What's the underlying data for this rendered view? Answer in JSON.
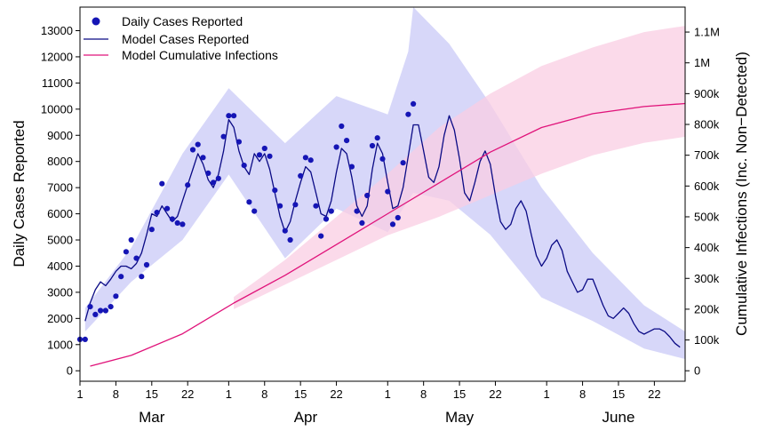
{
  "chart_data": {
    "type": "line",
    "title": "",
    "y_left_label": "Daily Cases Reported",
    "y_right_label": "Cumulative Infections (Inc. Non−Detected)",
    "x_tick_labels": [
      "1",
      "8",
      "15",
      "22",
      "1",
      "8",
      "15",
      "22",
      "1",
      "8",
      "15",
      "22",
      "1",
      "8",
      "15",
      "22"
    ],
    "x_tick_days": [
      0,
      7,
      14,
      21,
      29,
      36,
      43,
      50,
      60,
      67,
      74,
      81,
      91,
      98,
      105,
      112
    ],
    "month_labels": [
      {
        "label": "Mar",
        "day": 14
      },
      {
        "label": "Apr",
        "day": 44
      },
      {
        "label": "May",
        "day": 74
      },
      {
        "label": "June",
        "day": 105
      }
    ],
    "x_range_days": [
      0,
      118
    ],
    "x_origin": "Feb 1",
    "y_left_ticks": [
      0,
      1000,
      2000,
      3000,
      4000,
      5000,
      6000,
      7000,
      8000,
      9000,
      10000,
      11000,
      12000,
      13000
    ],
    "y_left_range": [
      -400,
      13900
    ],
    "y_right_ticks": [
      0,
      100000,
      200000,
      300000,
      400000,
      500000,
      600000,
      700000,
      800000,
      900000,
      1000000,
      1100000
    ],
    "y_right_tick_labels": [
      "0",
      "100k",
      "200k",
      "300k",
      "400k",
      "500k",
      "600k",
      "700k",
      "800k",
      "900k",
      "1M",
      "1.1M"
    ],
    "y_right_range": [
      -34000,
      1181000
    ],
    "legend": {
      "position": "top-left",
      "entries": [
        "Daily Cases Reported",
        "Model Cases Reported",
        "Model Cumulative Infections"
      ]
    },
    "colors": {
      "observed_points": "#1515b5",
      "model_cases_line": "#0a0a85",
      "model_cases_band": "#c9c9f7",
      "cumulative_line": "#e0137a",
      "cumulative_band": "#f9cde3"
    },
    "series": [
      {
        "name": "Daily Cases Reported",
        "kind": "points",
        "axis": "left",
        "points": [
          [
            0,
            1200
          ],
          [
            1,
            1200
          ],
          [
            2,
            2450
          ],
          [
            3,
            2150
          ],
          [
            4,
            2300
          ],
          [
            5,
            2300
          ],
          [
            6,
            2450
          ],
          [
            7,
            2850
          ],
          [
            8,
            3600
          ],
          [
            9,
            4550
          ],
          [
            10,
            5000
          ],
          [
            11,
            4300
          ],
          [
            12,
            3600
          ],
          [
            13,
            4050
          ],
          [
            14,
            5400
          ],
          [
            15,
            6050
          ],
          [
            16,
            7150
          ],
          [
            17,
            6200
          ],
          [
            18,
            5800
          ],
          [
            19,
            5650
          ],
          [
            20,
            5600
          ],
          [
            21,
            7100
          ],
          [
            22,
            8450
          ],
          [
            23,
            8650
          ],
          [
            24,
            8150
          ],
          [
            25,
            7550
          ],
          [
            26,
            7200
          ],
          [
            27,
            7350
          ],
          [
            28,
            8950
          ],
          [
            29,
            9750
          ],
          [
            30,
            9750
          ],
          [
            31,
            8750
          ],
          [
            32,
            7850
          ],
          [
            33,
            6450
          ],
          [
            34,
            6100
          ],
          [
            35,
            8250
          ],
          [
            36,
            8500
          ],
          [
            37,
            8200
          ],
          [
            38,
            6900
          ],
          [
            39,
            6300
          ],
          [
            40,
            5350
          ],
          [
            41,
            5000
          ],
          [
            42,
            6350
          ],
          [
            43,
            7450
          ],
          [
            44,
            8150
          ],
          [
            45,
            8050
          ],
          [
            46,
            6300
          ],
          [
            47,
            5150
          ],
          [
            48,
            5800
          ],
          [
            49,
            6100
          ],
          [
            50,
            8550
          ],
          [
            51,
            9350
          ],
          [
            52,
            8800
          ],
          [
            53,
            7800
          ],
          [
            54,
            6100
          ],
          [
            55,
            5650
          ],
          [
            56,
            6700
          ],
          [
            57,
            8600
          ],
          [
            58,
            8900
          ],
          [
            59,
            8100
          ],
          [
            60,
            6850
          ],
          [
            61,
            5600
          ],
          [
            62,
            5850
          ],
          [
            63,
            7950
          ],
          [
            64,
            9800
          ],
          [
            65,
            10200
          ]
        ]
      },
      {
        "name": "Model Cases Reported",
        "kind": "line",
        "axis": "left",
        "points": [
          [
            1,
            1900
          ],
          [
            2,
            2600
          ],
          [
            3,
            3100
          ],
          [
            4,
            3400
          ],
          [
            5,
            3250
          ],
          [
            6,
            3500
          ],
          [
            7,
            3800
          ],
          [
            8,
            4000
          ],
          [
            9,
            4000
          ],
          [
            10,
            3900
          ],
          [
            11,
            4100
          ],
          [
            12,
            4500
          ],
          [
            13,
            5200
          ],
          [
            14,
            6000
          ],
          [
            15,
            5900
          ],
          [
            16,
            6300
          ],
          [
            17,
            6000
          ],
          [
            18,
            5700
          ],
          [
            19,
            5900
          ],
          [
            20,
            6500
          ],
          [
            21,
            7100
          ],
          [
            22,
            7700
          ],
          [
            23,
            8300
          ],
          [
            24,
            7900
          ],
          [
            25,
            7300
          ],
          [
            26,
            7000
          ],
          [
            27,
            7500
          ],
          [
            28,
            8400
          ],
          [
            29,
            9600
          ],
          [
            30,
            9300
          ],
          [
            31,
            8400
          ],
          [
            32,
            7800
          ],
          [
            33,
            7500
          ],
          [
            34,
            8300
          ],
          [
            35,
            8000
          ],
          [
            36,
            8300
          ],
          [
            37,
            7700
          ],
          [
            38,
            6800
          ],
          [
            39,
            5900
          ],
          [
            40,
            5300
          ],
          [
            41,
            5700
          ],
          [
            42,
            6500
          ],
          [
            43,
            7200
          ],
          [
            44,
            7800
          ],
          [
            45,
            7600
          ],
          [
            46,
            6800
          ],
          [
            47,
            6000
          ],
          [
            48,
            5900
          ],
          [
            49,
            6500
          ],
          [
            50,
            7600
          ],
          [
            51,
            8500
          ],
          [
            52,
            8300
          ],
          [
            53,
            7400
          ],
          [
            54,
            6300
          ],
          [
            55,
            5900
          ],
          [
            56,
            6300
          ],
          [
            57,
            7700
          ],
          [
            58,
            8700
          ],
          [
            59,
            8300
          ],
          [
            60,
            7200
          ],
          [
            61,
            6200
          ],
          [
            62,
            6300
          ],
          [
            63,
            7000
          ],
          [
            64,
            8200
          ],
          [
            65,
            9400
          ],
          [
            66,
            9400
          ],
          [
            67,
            8400
          ],
          [
            68,
            7400
          ],
          [
            69,
            7200
          ],
          [
            70,
            7800
          ],
          [
            71,
            9000
          ],
          [
            72,
            9750
          ],
          [
            73,
            9200
          ],
          [
            74,
            8100
          ],
          [
            75,
            6800
          ],
          [
            76,
            6500
          ],
          [
            77,
            7200
          ],
          [
            78,
            8000
          ],
          [
            79,
            8400
          ],
          [
            80,
            7900
          ],
          [
            81,
            6700
          ],
          [
            82,
            5700
          ],
          [
            83,
            5400
          ],
          [
            84,
            5600
          ],
          [
            85,
            6200
          ],
          [
            86,
            6500
          ],
          [
            87,
            6100
          ],
          [
            88,
            5200
          ],
          [
            89,
            4400
          ],
          [
            90,
            4000
          ],
          [
            91,
            4300
          ],
          [
            92,
            4800
          ],
          [
            93,
            5000
          ],
          [
            94,
            4600
          ],
          [
            95,
            3800
          ],
          [
            96,
            3400
          ],
          [
            97,
            3000
          ],
          [
            98,
            3100
          ],
          [
            99,
            3500
          ],
          [
            100,
            3500
          ],
          [
            101,
            3000
          ],
          [
            102,
            2500
          ],
          [
            103,
            2100
          ],
          [
            104,
            2000
          ],
          [
            105,
            2200
          ],
          [
            106,
            2400
          ],
          [
            107,
            2200
          ],
          [
            108,
            1800
          ],
          [
            109,
            1500
          ],
          [
            110,
            1400
          ],
          [
            111,
            1500
          ],
          [
            112,
            1600
          ],
          [
            113,
            1600
          ],
          [
            114,
            1500
          ],
          [
            115,
            1300
          ],
          [
            116,
            1050
          ],
          [
            117,
            900
          ]
        ]
      },
      {
        "name": "Model Cumulative Infections",
        "kind": "line",
        "axis": "right",
        "points": [
          [
            2,
            15000
          ],
          [
            10,
            50000
          ],
          [
            20,
            120000
          ],
          [
            30,
            220000
          ],
          [
            40,
            310000
          ],
          [
            50,
            410000
          ],
          [
            60,
            510000
          ],
          [
            70,
            610000
          ],
          [
            80,
            710000
          ],
          [
            90,
            790000
          ],
          [
            100,
            835000
          ],
          [
            110,
            858000
          ],
          [
            118,
            868000
          ]
        ]
      }
    ],
    "bands": [
      {
        "for": "Model Cases Reported",
        "axis": "left",
        "lower": [
          [
            1,
            1500
          ],
          [
            10,
            3400
          ],
          [
            20,
            5000
          ],
          [
            29,
            7500
          ],
          [
            40,
            4300
          ],
          [
            50,
            6200
          ],
          [
            60,
            5300
          ],
          [
            65,
            6800
          ],
          [
            72,
            6500
          ],
          [
            80,
            5200
          ],
          [
            90,
            2800
          ],
          [
            100,
            1900
          ],
          [
            110,
            850
          ],
          [
            118,
            450
          ]
        ],
        "upper": [
          [
            1,
            2400
          ],
          [
            10,
            4700
          ],
          [
            20,
            8300
          ],
          [
            29,
            10800
          ],
          [
            40,
            8700
          ],
          [
            50,
            10500
          ],
          [
            60,
            9800
          ],
          [
            64,
            12200
          ],
          [
            65,
            13900
          ],
          [
            72,
            12500
          ],
          [
            80,
            10200
          ],
          [
            90,
            7000
          ],
          [
            100,
            4500
          ],
          [
            110,
            2500
          ],
          [
            118,
            1500
          ]
        ]
      },
      {
        "for": "Model Cumulative Infections",
        "axis": "right",
        "lower": [
          [
            30,
            200000
          ],
          [
            40,
            280000
          ],
          [
            50,
            360000
          ],
          [
            60,
            440000
          ],
          [
            70,
            500000
          ],
          [
            80,
            570000
          ],
          [
            90,
            640000
          ],
          [
            100,
            700000
          ],
          [
            110,
            740000
          ],
          [
            118,
            760000
          ]
        ],
        "upper": [
          [
            30,
            240000
          ],
          [
            40,
            360000
          ],
          [
            50,
            500000
          ],
          [
            60,
            640000
          ],
          [
            70,
            790000
          ],
          [
            80,
            900000
          ],
          [
            90,
            990000
          ],
          [
            100,
            1050000
          ],
          [
            110,
            1100000
          ],
          [
            118,
            1120000
          ]
        ]
      }
    ]
  }
}
